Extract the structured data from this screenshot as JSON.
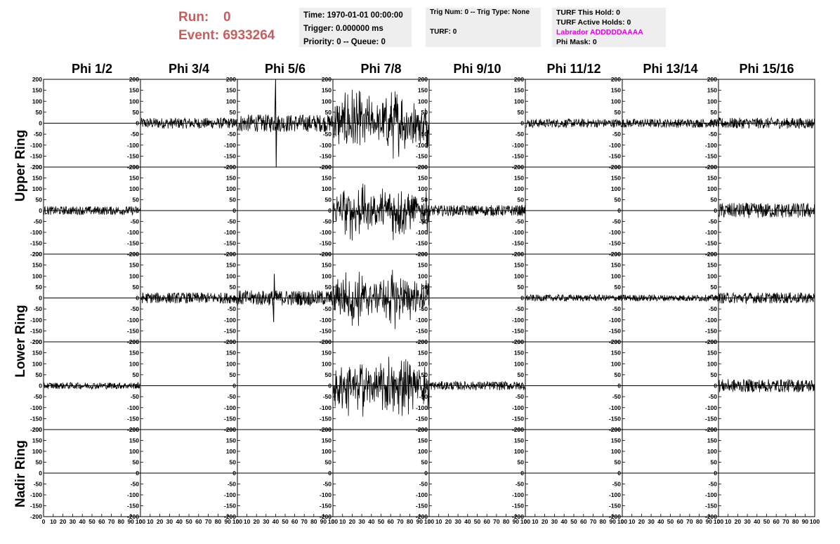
{
  "header": {
    "run_label": "Run:",
    "run_value": "0",
    "event_label": "Event:",
    "event_value": "6933264",
    "time": "Time: 1970-01-01 00:00:00",
    "trigger": "Trigger: 0.000000 ms",
    "priority": "Priority: 0 -- Queue: 0",
    "trig_num": "Trig Num: 0 -- Trig Type: None",
    "turf": "TURF: 0",
    "turf_hold": "TURF This Hold: 0",
    "turf_active": "TURF Active Holds: 0",
    "labrador": "Labrador ADDDDDAAAA",
    "phi_mask": "Phi Mask: 0"
  },
  "colors": {
    "run_text": "#cc5c5c",
    "labrador": "#e000e0",
    "box_bg": "#eeeeee"
  },
  "chart_data": {
    "type": "line",
    "columns": [
      "Phi 1/2",
      "Phi 3/4",
      "Phi 5/6",
      "Phi 7/8",
      "Phi 9/10",
      "Phi 11/12",
      "Phi 13/14",
      "Phi 15/16"
    ],
    "ring_labels": [
      "Upper Ring",
      "Lower Ring",
      "Nadir Ring"
    ],
    "rows_per_ring": [
      2,
      2,
      1
    ],
    "ylim": [
      -200,
      200
    ],
    "xlim": [
      0,
      100
    ],
    "yticks": [
      -200,
      -150,
      -100,
      -50,
      0,
      50,
      100,
      150,
      200
    ],
    "xticks": [
      0,
      10,
      20,
      30,
      40,
      50,
      60,
      70,
      80,
      90,
      100
    ],
    "amplitudes": [
      [
        0,
        25,
        40,
        160,
        0,
        20,
        20,
        25
      ],
      [
        20,
        0,
        0,
        130,
        25,
        0,
        0,
        35
      ],
      [
        0,
        25,
        35,
        130,
        0,
        15,
        15,
        25
      ],
      [
        15,
        0,
        0,
        150,
        20,
        0,
        0,
        30
      ],
      [
        0,
        0,
        0,
        0,
        0,
        0,
        0,
        0
      ]
    ],
    "spikes": [
      {
        "row": 0,
        "col": 2,
        "x": 40,
        "y": 200
      },
      {
        "row": 2,
        "col": 2,
        "x": 38,
        "y": -110
      }
    ],
    "grid": false
  }
}
